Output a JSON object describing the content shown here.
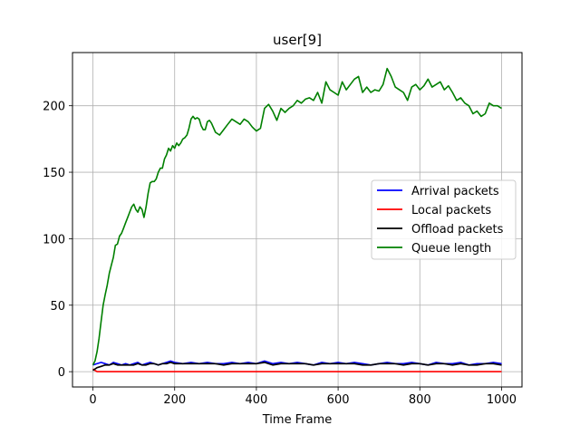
{
  "chart_data": {
    "type": "line",
    "title": "user[9]",
    "xlabel": "Time Frame",
    "ylabel": "",
    "xlim": [
      -50,
      1050
    ],
    "ylim": [
      -11.5,
      240
    ],
    "x_ticks": [
      0,
      200,
      400,
      600,
      800,
      1000
    ],
    "y_ticks": [
      0,
      50,
      100,
      150,
      200
    ],
    "grid": true,
    "legend_position": "center-right",
    "series": [
      {
        "name": "Arrival packets",
        "color": "#0000ff",
        "x": [
          0,
          10,
          20,
          30,
          40,
          50,
          60,
          70,
          80,
          90,
          100,
          110,
          120,
          130,
          140,
          150,
          160,
          170,
          180,
          190,
          200,
          220,
          240,
          260,
          280,
          300,
          320,
          340,
          360,
          380,
          400,
          420,
          440,
          460,
          480,
          500,
          520,
          540,
          560,
          580,
          600,
          620,
          640,
          660,
          680,
          700,
          720,
          740,
          760,
          780,
          800,
          820,
          840,
          860,
          880,
          900,
          920,
          940,
          960,
          980,
          1000
        ],
        "values": [
          5,
          6,
          7,
          6,
          5,
          7,
          6,
          5,
          6,
          5,
          6,
          7,
          5,
          6,
          7,
          6,
          5,
          6,
          7,
          8,
          7,
          6,
          7,
          6,
          7,
          6,
          6,
          7,
          6,
          7,
          6,
          8,
          6,
          7,
          6,
          7,
          6,
          5,
          7,
          6,
          7,
          6,
          7,
          6,
          5,
          6,
          7,
          6,
          6,
          7,
          6,
          5,
          7,
          6,
          6,
          7,
          5,
          6,
          6,
          7,
          6
        ]
      },
      {
        "name": "Local packets",
        "color": "#ff0000",
        "x": [
          0,
          5,
          10,
          1000
        ],
        "values": [
          2,
          1,
          0,
          0
        ]
      },
      {
        "name": "Offload packets",
        "color": "#000000",
        "x": [
          0,
          10,
          20,
          30,
          40,
          50,
          60,
          70,
          80,
          90,
          100,
          110,
          120,
          130,
          140,
          150,
          160,
          170,
          180,
          190,
          200,
          220,
          240,
          260,
          280,
          300,
          320,
          340,
          360,
          380,
          400,
          420,
          440,
          460,
          480,
          500,
          520,
          540,
          560,
          580,
          600,
          620,
          640,
          660,
          680,
          700,
          720,
          740,
          760,
          780,
          800,
          820,
          840,
          860,
          880,
          900,
          920,
          940,
          960,
          980,
          1000
        ],
        "values": [
          1,
          3,
          4,
          5,
          5,
          6,
          5,
          5,
          5,
          5,
          5,
          6,
          5,
          5,
          6,
          6,
          5,
          6,
          6,
          7,
          6,
          6,
          6,
          6,
          6,
          6,
          5,
          6,
          6,
          6,
          6,
          7,
          5,
          6,
          6,
          6,
          6,
          5,
          6,
          6,
          6,
          6,
          6,
          5,
          5,
          6,
          6,
          6,
          5,
          6,
          6,
          5,
          6,
          6,
          5,
          6,
          5,
          5,
          6,
          6,
          5
        ]
      },
      {
        "name": "Queue length",
        "color": "#008000",
        "x": [
          0,
          5,
          10,
          15,
          20,
          25,
          30,
          35,
          40,
          45,
          50,
          55,
          60,
          65,
          70,
          75,
          80,
          85,
          90,
          95,
          100,
          105,
          110,
          115,
          120,
          125,
          130,
          135,
          140,
          145,
          150,
          155,
          160,
          165,
          170,
          175,
          180,
          185,
          190,
          195,
          200,
          205,
          210,
          215,
          220,
          225,
          230,
          235,
          240,
          245,
          250,
          255,
          260,
          265,
          270,
          275,
          280,
          285,
          290,
          300,
          310,
          320,
          330,
          340,
          350,
          360,
          370,
          380,
          390,
          400,
          410,
          420,
          430,
          440,
          450,
          460,
          470,
          480,
          490,
          500,
          510,
          520,
          530,
          540,
          550,
          560,
          570,
          580,
          590,
          600,
          610,
          620,
          630,
          640,
          650,
          660,
          670,
          680,
          690,
          700,
          710,
          720,
          730,
          740,
          750,
          760,
          770,
          780,
          790,
          800,
          810,
          820,
          830,
          840,
          850,
          860,
          870,
          880,
          890,
          900,
          910,
          920,
          930,
          940,
          950,
          960,
          970,
          980,
          990,
          1000
        ],
        "values": [
          5,
          8,
          15,
          25,
          38,
          50,
          58,
          65,
          74,
          80,
          86,
          95,
          96,
          102,
          104,
          108,
          112,
          116,
          120,
          124,
          126,
          122,
          120,
          124,
          122,
          116,
          124,
          134,
          142,
          143,
          143,
          145,
          150,
          153,
          153,
          160,
          163,
          168,
          166,
          170,
          168,
          172,
          170,
          172,
          175,
          176,
          178,
          183,
          190,
          192,
          190,
          191,
          190,
          185,
          182,
          182,
          188,
          189,
          187,
          180,
          178,
          182,
          186,
          190,
          188,
          186,
          190,
          188,
          184,
          181,
          183,
          198,
          201,
          196,
          189,
          198,
          195,
          198,
          200,
          204,
          202,
          205,
          206,
          204,
          210,
          202,
          218,
          212,
          210,
          208,
          218,
          212,
          216,
          220,
          222,
          210,
          214,
          210,
          212,
          211,
          216,
          228,
          222,
          214,
          212,
          210,
          204,
          214,
          216,
          212,
          215,
          220,
          214,
          216,
          218,
          212,
          215,
          210,
          204,
          206,
          202,
          200,
          194,
          196,
          192,
          194,
          202,
          200,
          200,
          198
        ]
      }
    ]
  }
}
